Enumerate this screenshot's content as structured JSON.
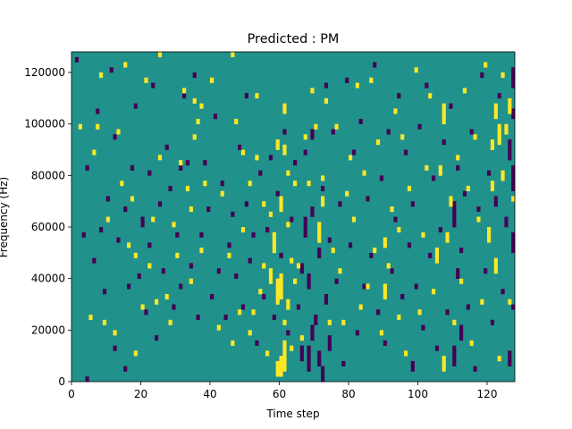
{
  "chart_data": {
    "type": "heatmap",
    "title": "Predicted : PM",
    "xlabel": "Time step",
    "ylabel": "Frequency (Hz)",
    "xlim": [
      0,
      128
    ],
    "ylim": [
      0,
      128000
    ],
    "xticks": [
      0,
      20,
      40,
      60,
      80,
      100,
      120
    ],
    "yticks": [
      0,
      20000,
      40000,
      60000,
      80000,
      100000,
      120000
    ],
    "n_time": 128,
    "n_freq": 64,
    "value_scale": {
      "low": 0,
      "mid": 1,
      "high": 2
    },
    "colors": {
      "low": "#440154",
      "mid": "#21918c",
      "high": "#fde725"
    },
    "background_value": 1,
    "high_runs": [
      [
        2,
        49,
        49
      ],
      [
        5,
        12,
        12
      ],
      [
        6,
        44,
        44
      ],
      [
        7,
        49,
        49
      ],
      [
        8,
        59,
        59
      ],
      [
        9,
        11,
        11
      ],
      [
        10,
        31,
        31
      ],
      [
        12,
        9,
        9
      ],
      [
        13,
        48,
        48
      ],
      [
        14,
        38,
        38
      ],
      [
        15,
        61,
        61
      ],
      [
        16,
        26,
        26
      ],
      [
        17,
        35,
        35
      ],
      [
        18,
        5,
        5
      ],
      [
        18,
        24,
        24
      ],
      [
        20,
        14,
        14
      ],
      [
        21,
        58,
        58
      ],
      [
        22,
        22,
        22
      ],
      [
        23,
        31,
        31
      ],
      [
        24,
        15,
        15
      ],
      [
        25,
        43,
        43
      ],
      [
        25,
        63,
        63
      ],
      [
        27,
        16,
        16
      ],
      [
        28,
        11,
        11
      ],
      [
        29,
        30,
        30
      ],
      [
        30,
        24,
        24
      ],
      [
        31,
        42,
        42
      ],
      [
        32,
        56,
        56
      ],
      [
        33,
        37,
        37
      ],
      [
        34,
        19,
        19
      ],
      [
        34,
        33,
        33
      ],
      [
        35,
        54,
        54
      ],
      [
        35,
        47,
        47
      ],
      [
        36,
        50,
        50
      ],
      [
        37,
        53,
        53
      ],
      [
        37,
        25,
        25
      ],
      [
        38,
        38,
        38
      ],
      [
        40,
        58,
        58
      ],
      [
        42,
        10,
        10
      ],
      [
        43,
        36,
        36
      ],
      [
        45,
        24,
        24
      ],
      [
        46,
        63,
        63
      ],
      [
        46,
        7,
        7
      ],
      [
        47,
        50,
        50
      ],
      [
        48,
        13,
        13
      ],
      [
        49,
        44,
        44
      ],
      [
        49,
        29,
        29
      ],
      [
        51,
        38,
        38
      ],
      [
        51,
        9,
        9
      ],
      [
        52,
        13,
        13
      ],
      [
        53,
        55,
        55
      ],
      [
        53,
        43,
        43
      ],
      [
        54,
        17,
        17
      ],
      [
        55,
        22,
        22
      ],
      [
        55,
        34,
        34
      ],
      [
        56,
        5,
        5
      ],
      [
        57,
        19,
        21
      ],
      [
        57,
        32,
        32
      ],
      [
        58,
        25,
        28
      ],
      [
        59,
        1,
        3
      ],
      [
        59,
        15,
        19
      ],
      [
        59,
        45,
        46
      ],
      [
        60,
        1,
        4
      ],
      [
        60,
        16,
        20
      ],
      [
        60,
        33,
        35
      ],
      [
        61,
        2,
        7
      ],
      [
        61,
        11,
        11
      ],
      [
        61,
        44,
        45
      ],
      [
        61,
        52,
        53
      ],
      [
        62,
        14,
        15
      ],
      [
        62,
        30,
        30
      ],
      [
        62,
        40,
        40
      ],
      [
        63,
        6,
        6
      ],
      [
        63,
        23,
        23
      ],
      [
        64,
        19,
        19
      ],
      [
        64,
        38,
        38
      ],
      [
        65,
        22,
        22
      ],
      [
        66,
        8,
        8
      ],
      [
        67,
        47,
        47
      ],
      [
        68,
        38,
        38
      ],
      [
        69,
        56,
        56
      ],
      [
        70,
        49,
        49
      ],
      [
        71,
        27,
        30
      ],
      [
        72,
        34,
        35
      ],
      [
        72,
        39,
        39
      ],
      [
        73,
        54,
        54
      ],
      [
        74,
        11,
        11
      ],
      [
        75,
        25,
        25
      ],
      [
        76,
        49,
        49
      ],
      [
        77,
        21,
        21
      ],
      [
        78,
        11,
        11
      ],
      [
        79,
        36,
        36
      ],
      [
        80,
        43,
        43
      ],
      [
        81,
        31,
        31
      ],
      [
        82,
        57,
        57
      ],
      [
        83,
        14,
        14
      ],
      [
        84,
        40,
        40
      ],
      [
        85,
        18,
        18
      ],
      [
        86,
        58,
        58
      ],
      [
        87,
        25,
        25
      ],
      [
        88,
        46,
        46
      ],
      [
        89,
        9,
        9
      ],
      [
        90,
        16,
        18
      ],
      [
        90,
        26,
        27
      ],
      [
        91,
        22,
        22
      ],
      [
        92,
        33,
        33
      ],
      [
        93,
        52,
        52
      ],
      [
        94,
        12,
        12
      ],
      [
        94,
        29,
        29
      ],
      [
        95,
        47,
        47
      ],
      [
        96,
        5,
        5
      ],
      [
        97,
        37,
        37
      ],
      [
        99,
        60,
        60
      ],
      [
        100,
        13,
        13
      ],
      [
        101,
        28,
        28
      ],
      [
        102,
        41,
        41
      ],
      [
        103,
        55,
        55
      ],
      [
        104,
        17,
        17
      ],
      [
        105,
        23,
        25
      ],
      [
        106,
        40,
        41
      ],
      [
        107,
        2,
        4
      ],
      [
        107,
        50,
        53
      ],
      [
        108,
        27,
        28
      ],
      [
        109,
        34,
        35
      ],
      [
        110,
        11,
        11
      ],
      [
        111,
        43,
        43
      ],
      [
        112,
        19,
        19
      ],
      [
        113,
        56,
        56
      ],
      [
        114,
        37,
        37
      ],
      [
        115,
        7,
        7
      ],
      [
        116,
        47,
        47
      ],
      [
        117,
        31,
        31
      ],
      [
        118,
        15,
        15
      ],
      [
        119,
        61,
        61
      ],
      [
        120,
        27,
        29
      ],
      [
        121,
        37,
        38
      ],
      [
        121,
        45,
        46
      ],
      [
        122,
        21,
        23
      ],
      [
        122,
        51,
        53
      ],
      [
        123,
        4,
        4
      ],
      [
        123,
        46,
        49
      ],
      [
        124,
        39,
        40
      ],
      [
        124,
        59,
        59
      ],
      [
        125,
        48,
        49
      ],
      [
        126,
        15,
        15
      ],
      [
        126,
        52,
        54
      ],
      [
        127,
        35,
        35
      ]
    ],
    "low_runs": [
      [
        1,
        62,
        62
      ],
      [
        3,
        28,
        28
      ],
      [
        4,
        0,
        0
      ],
      [
        4,
        41,
        41
      ],
      [
        6,
        23,
        23
      ],
      [
        7,
        52,
        52
      ],
      [
        8,
        29,
        29
      ],
      [
        9,
        17,
        17
      ],
      [
        10,
        35,
        35
      ],
      [
        11,
        60,
        60
      ],
      [
        12,
        6,
        6
      ],
      [
        12,
        47,
        47
      ],
      [
        13,
        27,
        27
      ],
      [
        15,
        2,
        2
      ],
      [
        15,
        33,
        33
      ],
      [
        16,
        18,
        18
      ],
      [
        17,
        41,
        41
      ],
      [
        18,
        53,
        53
      ],
      [
        19,
        20,
        20
      ],
      [
        20,
        30,
        31
      ],
      [
        21,
        13,
        13
      ],
      [
        22,
        26,
        26
      ],
      [
        22,
        40,
        40
      ],
      [
        23,
        57,
        57
      ],
      [
        24,
        8,
        8
      ],
      [
        25,
        34,
        34
      ],
      [
        26,
        21,
        21
      ],
      [
        27,
        45,
        45
      ],
      [
        28,
        37,
        37
      ],
      [
        29,
        14,
        14
      ],
      [
        30,
        28,
        28
      ],
      [
        31,
        41,
        41
      ],
      [
        31,
        18,
        18
      ],
      [
        32,
        55,
        55
      ],
      [
        33,
        42,
        42
      ],
      [
        34,
        22,
        22
      ],
      [
        35,
        59,
        59
      ],
      [
        36,
        12,
        12
      ],
      [
        37,
        28,
        28
      ],
      [
        38,
        42,
        42
      ],
      [
        39,
        33,
        33
      ],
      [
        40,
        16,
        16
      ],
      [
        41,
        51,
        51
      ],
      [
        42,
        21,
        21
      ],
      [
        43,
        38,
        38
      ],
      [
        44,
        12,
        12
      ],
      [
        45,
        26,
        26
      ],
      [
        46,
        32,
        32
      ],
      [
        47,
        20,
        20
      ],
      [
        48,
        45,
        45
      ],
      [
        49,
        14,
        14
      ],
      [
        50,
        34,
        34
      ],
      [
        50,
        55,
        55
      ],
      [
        51,
        23,
        23
      ],
      [
        52,
        28,
        28
      ],
      [
        53,
        7,
        7
      ],
      [
        54,
        40,
        40
      ],
      [
        55,
        16,
        16
      ],
      [
        56,
        29,
        29
      ],
      [
        57,
        43,
        43
      ],
      [
        58,
        12,
        12
      ],
      [
        59,
        36,
        36
      ],
      [
        60,
        24,
        24
      ],
      [
        61,
        48,
        48
      ],
      [
        62,
        9,
        9
      ],
      [
        63,
        31,
        31
      ],
      [
        64,
        42,
        42
      ],
      [
        65,
        14,
        14
      ],
      [
        66,
        4,
        6
      ],
      [
        66,
        21,
        22
      ],
      [
        67,
        28,
        31
      ],
      [
        67,
        44,
        44
      ],
      [
        68,
        2,
        6
      ],
      [
        68,
        18,
        20
      ],
      [
        69,
        8,
        10
      ],
      [
        69,
        32,
        33
      ],
      [
        69,
        47,
        48
      ],
      [
        70,
        11,
        12
      ],
      [
        71,
        3,
        5
      ],
      [
        71,
        24,
        25
      ],
      [
        72,
        0,
        2
      ],
      [
        72,
        37,
        37
      ],
      [
        73,
        15,
        16
      ],
      [
        73,
        57,
        57
      ],
      [
        74,
        6,
        8
      ],
      [
        74,
        27,
        27
      ],
      [
        75,
        48,
        48
      ],
      [
        76,
        19,
        19
      ],
      [
        77,
        34,
        34
      ],
      [
        78,
        3,
        3
      ],
      [
        79,
        58,
        58
      ],
      [
        80,
        26,
        26
      ],
      [
        81,
        44,
        44
      ],
      [
        82,
        9,
        9
      ],
      [
        83,
        50,
        50
      ],
      [
        84,
        18,
        18
      ],
      [
        85,
        35,
        35
      ],
      [
        86,
        24,
        24
      ],
      [
        87,
        61,
        61
      ],
      [
        88,
        13,
        13
      ],
      [
        89,
        39,
        39
      ],
      [
        90,
        7,
        7
      ],
      [
        91,
        48,
        48
      ],
      [
        92,
        21,
        21
      ],
      [
        93,
        31,
        31
      ],
      [
        94,
        55,
        55
      ],
      [
        95,
        16,
        16
      ],
      [
        96,
        44,
        44
      ],
      [
        97,
        26,
        26
      ],
      [
        98,
        2,
        3
      ],
      [
        98,
        34,
        34
      ],
      [
        99,
        18,
        18
      ],
      [
        100,
        49,
        49
      ],
      [
        101,
        10,
        10
      ],
      [
        102,
        57,
        57
      ],
      [
        103,
        24,
        24
      ],
      [
        104,
        39,
        39
      ],
      [
        105,
        6,
        6
      ],
      [
        106,
        29,
        29
      ],
      [
        107,
        46,
        46
      ],
      [
        108,
        13,
        13
      ],
      [
        109,
        53,
        53
      ],
      [
        110,
        3,
        6
      ],
      [
        110,
        30,
        34
      ],
      [
        111,
        20,
        21
      ],
      [
        111,
        41,
        41
      ],
      [
        112,
        8,
        10
      ],
      [
        112,
        25,
        25
      ],
      [
        113,
        36,
        36
      ],
      [
        114,
        14,
        14
      ],
      [
        115,
        48,
        48
      ],
      [
        116,
        2,
        2
      ],
      [
        117,
        33,
        33
      ],
      [
        118,
        59,
        59
      ],
      [
        119,
        21,
        21
      ],
      [
        120,
        40,
        40
      ],
      [
        121,
        11,
        11
      ],
      [
        122,
        34,
        35
      ],
      [
        123,
        55,
        55
      ],
      [
        124,
        17,
        17
      ],
      [
        125,
        30,
        31
      ],
      [
        126,
        3,
        5
      ],
      [
        126,
        43,
        46
      ],
      [
        127,
        14,
        14
      ],
      [
        127,
        25,
        28
      ],
      [
        127,
        37,
        41
      ],
      [
        127,
        51,
        52
      ],
      [
        127,
        57,
        60
      ]
    ]
  }
}
